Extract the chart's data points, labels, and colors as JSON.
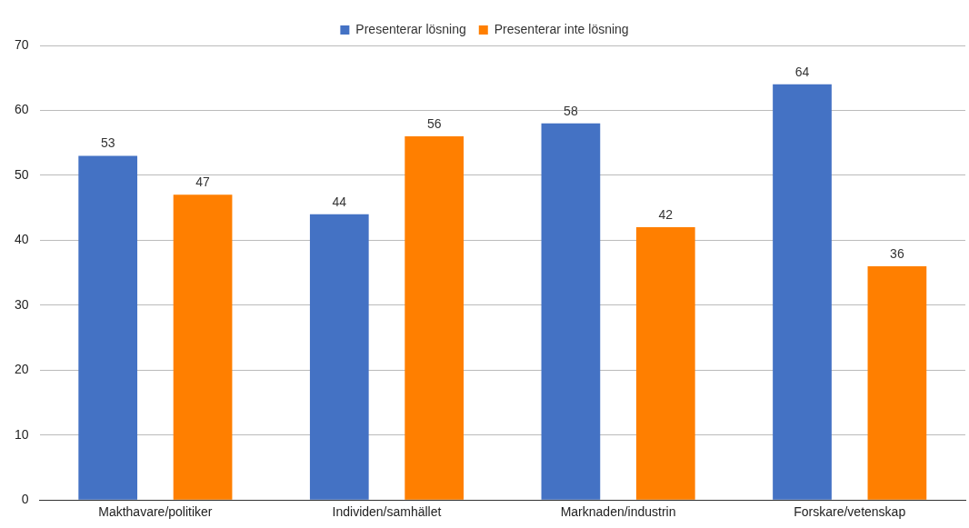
{
  "chart_data": {
    "type": "bar",
    "categories": [
      "Makthavare/politiker",
      "Individen/samhället",
      "Marknaden/industrin",
      "Forskare/vetenskap"
    ],
    "series": [
      {
        "name": "Presenterar lösning",
        "color": "#4472c4",
        "values": [
          53,
          44,
          58,
          64
        ]
      },
      {
        "name": "Presenterar inte lösning",
        "color": "#ff7f00",
        "values": [
          47,
          56,
          42,
          36
        ]
      }
    ],
    "ylim": [
      0,
      70
    ],
    "yticks": [
      0,
      10,
      20,
      30,
      40,
      50,
      60,
      70
    ],
    "grid": "y",
    "legend": "top",
    "data_labels": true
  }
}
